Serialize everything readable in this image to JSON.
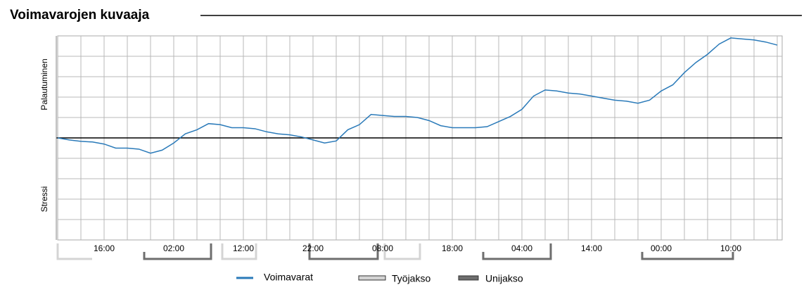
{
  "chart_data": {
    "type": "line",
    "title": "Voimavarojen kuvaaja",
    "y_axis_labels": [
      "Palautuminen",
      "Stressi"
    ],
    "categories": [
      null,
      null,
      null,
      null,
      "16:00",
      null,
      null,
      null,
      null,
      null,
      "02:00",
      null,
      null,
      null,
      null,
      null,
      "12:00",
      null,
      null,
      null,
      null,
      null,
      "22:00",
      null,
      null,
      null,
      null,
      null,
      "08:00",
      null,
      null,
      null,
      null,
      null,
      "18:00",
      null,
      null,
      null,
      null,
      null,
      "04:00",
      null,
      null,
      null,
      null,
      null,
      "14:00",
      null,
      null,
      null,
      null,
      null,
      "00:00",
      null,
      null,
      null,
      null,
      null,
      "10:00",
      null,
      null,
      null,
      null
    ],
    "series": [
      {
        "name": "Voimavarat",
        "color": "#2a7ab9",
        "values": [
          0,
          -0.1,
          -0.17,
          -0.2,
          -0.3,
          -0.5,
          -0.5,
          -0.55,
          -0.75,
          -0.6,
          -0.25,
          0.2,
          0.4,
          0.7,
          0.65,
          0.5,
          0.5,
          0.45,
          0.3,
          0.2,
          0.15,
          0.05,
          -0.1,
          -0.25,
          -0.15,
          0.4,
          0.65,
          1.15,
          1.1,
          1.05,
          1.05,
          1.0,
          0.85,
          0.6,
          0.5,
          0.5,
          0.5,
          0.55,
          0.8,
          1.05,
          1.4,
          2.05,
          2.35,
          2.3,
          2.2,
          2.15,
          2.05,
          1.95,
          1.85,
          1.8,
          1.7,
          1.85,
          2.3,
          2.6,
          3.2,
          3.7,
          4.1,
          4.6,
          4.9,
          4.85,
          4.8,
          4.7,
          4.55
        ]
      }
    ],
    "period_legend": [
      {
        "name": "Työjakso",
        "color": "#d4d4d4"
      },
      {
        "name": "Unijakso",
        "color": "#6e6e6e"
      }
    ],
    "ylim": [
      -5,
      5
    ],
    "grid": true
  }
}
